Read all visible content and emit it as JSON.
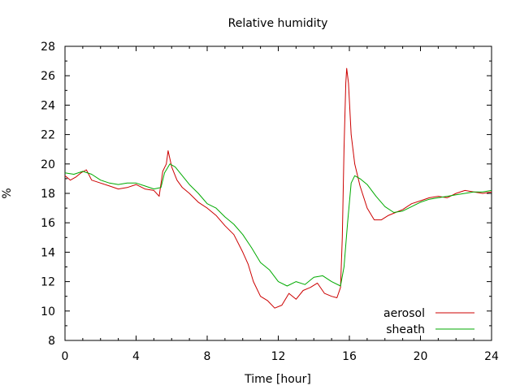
{
  "chart_data": {
    "type": "line",
    "title": "Relative humidity",
    "xlabel": "Time [hour]",
    "ylabel": "%",
    "xlim": [
      0,
      24
    ],
    "ylim": [
      8,
      28
    ],
    "xticks": [
      0,
      4,
      8,
      12,
      16,
      20,
      24
    ],
    "yticks": [
      8,
      10,
      12,
      14,
      16,
      18,
      20,
      22,
      24,
      26,
      28
    ],
    "grid": false,
    "legend_position": "bottom-right",
    "series": [
      {
        "name": "aerosol",
        "color": "#cc0000",
        "points": [
          [
            0.0,
            19.2
          ],
          [
            0.3,
            18.9
          ],
          [
            0.6,
            19.1
          ],
          [
            0.9,
            19.4
          ],
          [
            1.2,
            19.6
          ],
          [
            1.5,
            18.9
          ],
          [
            2.0,
            18.7
          ],
          [
            2.5,
            18.5
          ],
          [
            3.0,
            18.3
          ],
          [
            3.5,
            18.4
          ],
          [
            4.0,
            18.6
          ],
          [
            4.5,
            18.3
          ],
          [
            5.0,
            18.2
          ],
          [
            5.3,
            17.8
          ],
          [
            5.5,
            19.5
          ],
          [
            5.7,
            20.0
          ],
          [
            5.8,
            20.9
          ],
          [
            6.0,
            19.8
          ],
          [
            6.3,
            18.9
          ],
          [
            6.6,
            18.4
          ],
          [
            7.0,
            18.0
          ],
          [
            7.5,
            17.4
          ],
          [
            8.0,
            17.0
          ],
          [
            8.5,
            16.5
          ],
          [
            9.0,
            15.8
          ],
          [
            9.5,
            15.2
          ],
          [
            10.0,
            14.0
          ],
          [
            10.3,
            13.2
          ],
          [
            10.6,
            12.0
          ],
          [
            11.0,
            11.0
          ],
          [
            11.4,
            10.7
          ],
          [
            11.8,
            10.2
          ],
          [
            12.2,
            10.4
          ],
          [
            12.6,
            11.2
          ],
          [
            13.0,
            10.8
          ],
          [
            13.4,
            11.4
          ],
          [
            13.8,
            11.6
          ],
          [
            14.2,
            11.9
          ],
          [
            14.6,
            11.2
          ],
          [
            15.0,
            11.0
          ],
          [
            15.3,
            10.9
          ],
          [
            15.5,
            11.6
          ],
          [
            15.6,
            15.0
          ],
          [
            15.7,
            21.0
          ],
          [
            15.8,
            25.5
          ],
          [
            15.85,
            26.5
          ],
          [
            15.95,
            25.5
          ],
          [
            16.1,
            22.0
          ],
          [
            16.3,
            20.0
          ],
          [
            16.6,
            18.5
          ],
          [
            17.0,
            17.0
          ],
          [
            17.4,
            16.2
          ],
          [
            17.8,
            16.2
          ],
          [
            18.2,
            16.5
          ],
          [
            18.6,
            16.7
          ],
          [
            19.0,
            16.9
          ],
          [
            19.5,
            17.3
          ],
          [
            20.0,
            17.5
          ],
          [
            20.5,
            17.7
          ],
          [
            21.0,
            17.8
          ],
          [
            21.5,
            17.7
          ],
          [
            22.0,
            18.0
          ],
          [
            22.5,
            18.2
          ],
          [
            23.0,
            18.1
          ],
          [
            23.5,
            18.0
          ],
          [
            24.0,
            18.1
          ]
        ]
      },
      {
        "name": "sheath",
        "color": "#00aa00",
        "points": [
          [
            0.0,
            19.4
          ],
          [
            0.5,
            19.3
          ],
          [
            1.0,
            19.5
          ],
          [
            1.5,
            19.3
          ],
          [
            2.0,
            18.9
          ],
          [
            2.5,
            18.7
          ],
          [
            3.0,
            18.6
          ],
          [
            3.5,
            18.7
          ],
          [
            4.0,
            18.7
          ],
          [
            4.5,
            18.5
          ],
          [
            5.0,
            18.3
          ],
          [
            5.4,
            18.4
          ],
          [
            5.6,
            19.4
          ],
          [
            5.9,
            20.0
          ],
          [
            6.2,
            19.8
          ],
          [
            6.6,
            19.2
          ],
          [
            7.0,
            18.6
          ],
          [
            7.5,
            18.0
          ],
          [
            8.0,
            17.3
          ],
          [
            8.5,
            17.0
          ],
          [
            9.0,
            16.4
          ],
          [
            9.5,
            15.9
          ],
          [
            10.0,
            15.2
          ],
          [
            10.5,
            14.3
          ],
          [
            11.0,
            13.3
          ],
          [
            11.5,
            12.8
          ],
          [
            12.0,
            12.0
          ],
          [
            12.5,
            11.7
          ],
          [
            13.0,
            12.0
          ],
          [
            13.5,
            11.8
          ],
          [
            14.0,
            12.3
          ],
          [
            14.5,
            12.4
          ],
          [
            15.0,
            12.0
          ],
          [
            15.5,
            11.7
          ],
          [
            15.7,
            13.0
          ],
          [
            15.9,
            16.0
          ],
          [
            16.1,
            18.7
          ],
          [
            16.3,
            19.2
          ],
          [
            16.6,
            19.0
          ],
          [
            17.0,
            18.6
          ],
          [
            17.5,
            17.8
          ],
          [
            18.0,
            17.1
          ],
          [
            18.5,
            16.7
          ],
          [
            19.0,
            16.8
          ],
          [
            19.5,
            17.1
          ],
          [
            20.0,
            17.4
          ],
          [
            20.5,
            17.6
          ],
          [
            21.0,
            17.7
          ],
          [
            21.5,
            17.8
          ],
          [
            22.0,
            17.9
          ],
          [
            22.5,
            18.0
          ],
          [
            23.0,
            18.1
          ],
          [
            23.5,
            18.1
          ],
          [
            24.0,
            18.2
          ]
        ]
      }
    ]
  }
}
